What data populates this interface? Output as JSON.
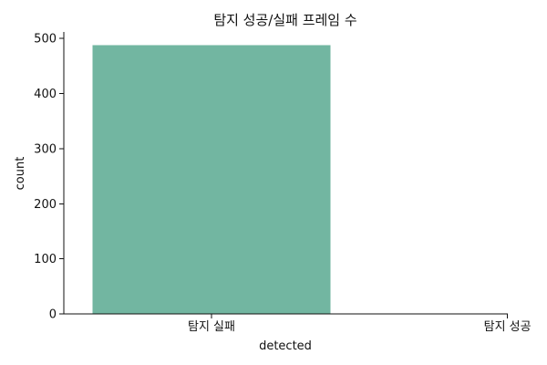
{
  "chart_data": {
    "type": "bar",
    "title": "탐지 성공/실패 프레임 수",
    "xlabel": "detected",
    "ylabel": "count",
    "categories": [
      "탐지 실패",
      "탐지 성공"
    ],
    "values": [
      488,
      0
    ],
    "ylim": [
      0,
      512
    ],
    "yticks": [
      0,
      100,
      200,
      300,
      400,
      500
    ],
    "bar_color": "#72b6a1",
    "grid": false,
    "legend": "none"
  }
}
